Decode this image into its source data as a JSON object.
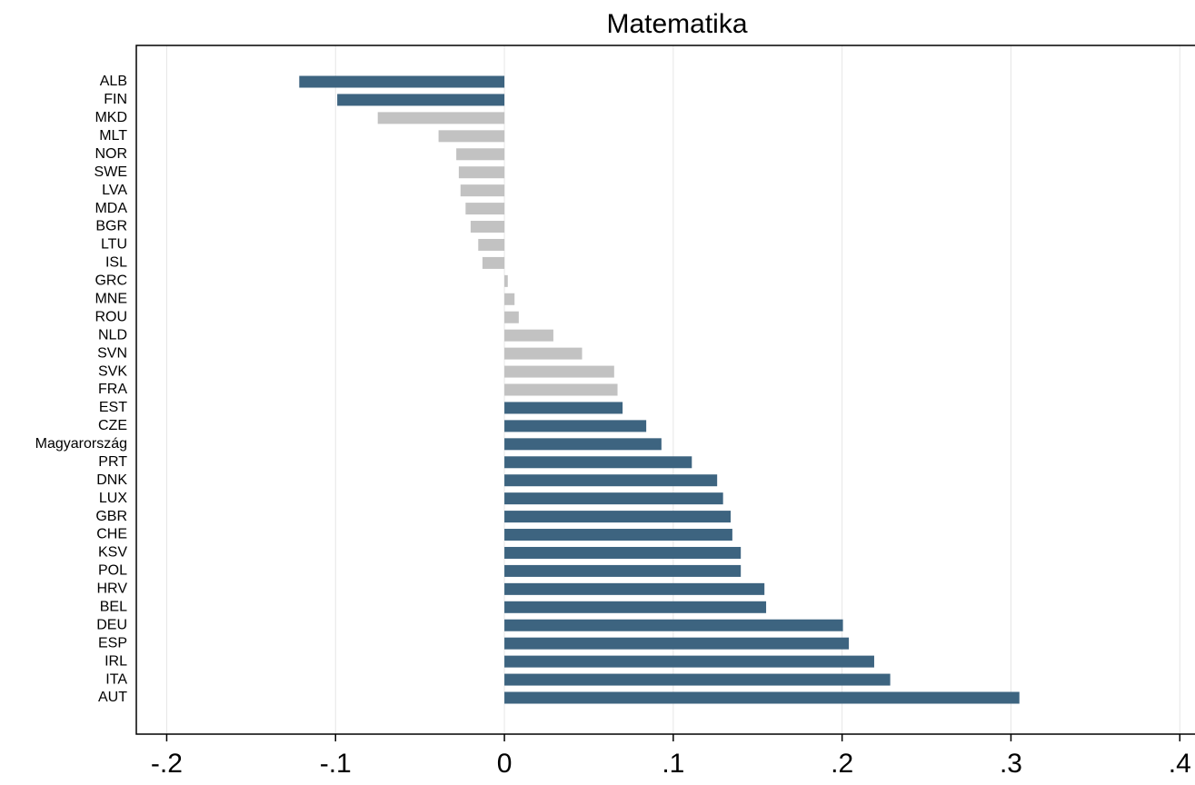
{
  "chart_data": {
    "type": "barh",
    "title": "Matematika",
    "categories": [
      "ALB",
      "FIN",
      "MKD",
      "MLT",
      "NOR",
      "SWE",
      "LVA",
      "MDA",
      "BGR",
      "LTU",
      "ISL",
      "GRC",
      "MNE",
      "ROU",
      "NLD",
      "SVN",
      "SVK",
      "FRA",
      "EST",
      "CZE",
      "Magyarország",
      "PRT",
      "DNK",
      "LUX",
      "GBR",
      "CHE",
      "KSV",
      "POL",
      "HRV",
      "BEL",
      "DEU",
      "ESP",
      "IRL",
      "ITA",
      "AUT"
    ],
    "values": [
      -0.1215,
      -0.099,
      -0.075,
      -0.039,
      -0.0285,
      -0.027,
      -0.026,
      -0.023,
      -0.02,
      -0.0155,
      -0.013,
      0.002,
      0.006,
      0.0085,
      0.029,
      0.046,
      0.065,
      0.067,
      0.07,
      0.084,
      0.093,
      0.111,
      0.126,
      0.1295,
      0.134,
      0.135,
      0.14,
      0.14,
      0.154,
      0.155,
      0.2005,
      0.204,
      0.219,
      0.2285,
      0.305
    ],
    "colors": [
      "#3d6480",
      "#3d6480",
      "#c2c2c2",
      "#c2c2c2",
      "#c2c2c2",
      "#c2c2c2",
      "#c2c2c2",
      "#c2c2c2",
      "#c2c2c2",
      "#c2c2c2",
      "#c2c2c2",
      "#c2c2c2",
      "#c2c2c2",
      "#c2c2c2",
      "#c2c2c2",
      "#c2c2c2",
      "#c2c2c2",
      "#c2c2c2",
      "#3d6480",
      "#3d6480",
      "#3d6480",
      "#3d6480",
      "#3d6480",
      "#3d6480",
      "#3d6480",
      "#3d6480",
      "#3d6480",
      "#3d6480",
      "#3d6480",
      "#3d6480",
      "#3d6480",
      "#3d6480",
      "#3d6480",
      "#3d6480",
      "#3d6480"
    ],
    "xlim": [
      -0.218,
      0.409
    ],
    "xticks": [
      {
        "value": -0.2,
        "label": "-.2"
      },
      {
        "value": -0.1,
        "label": "-.1"
      },
      0,
      {
        "value": 0.1,
        "label": ".1"
      },
      {
        "value": 0.2,
        "label": ".2"
      },
      {
        "value": 0.3,
        "label": ".3"
      },
      {
        "value": 0.4,
        "label": ".4"
      }
    ],
    "grid": true
  }
}
